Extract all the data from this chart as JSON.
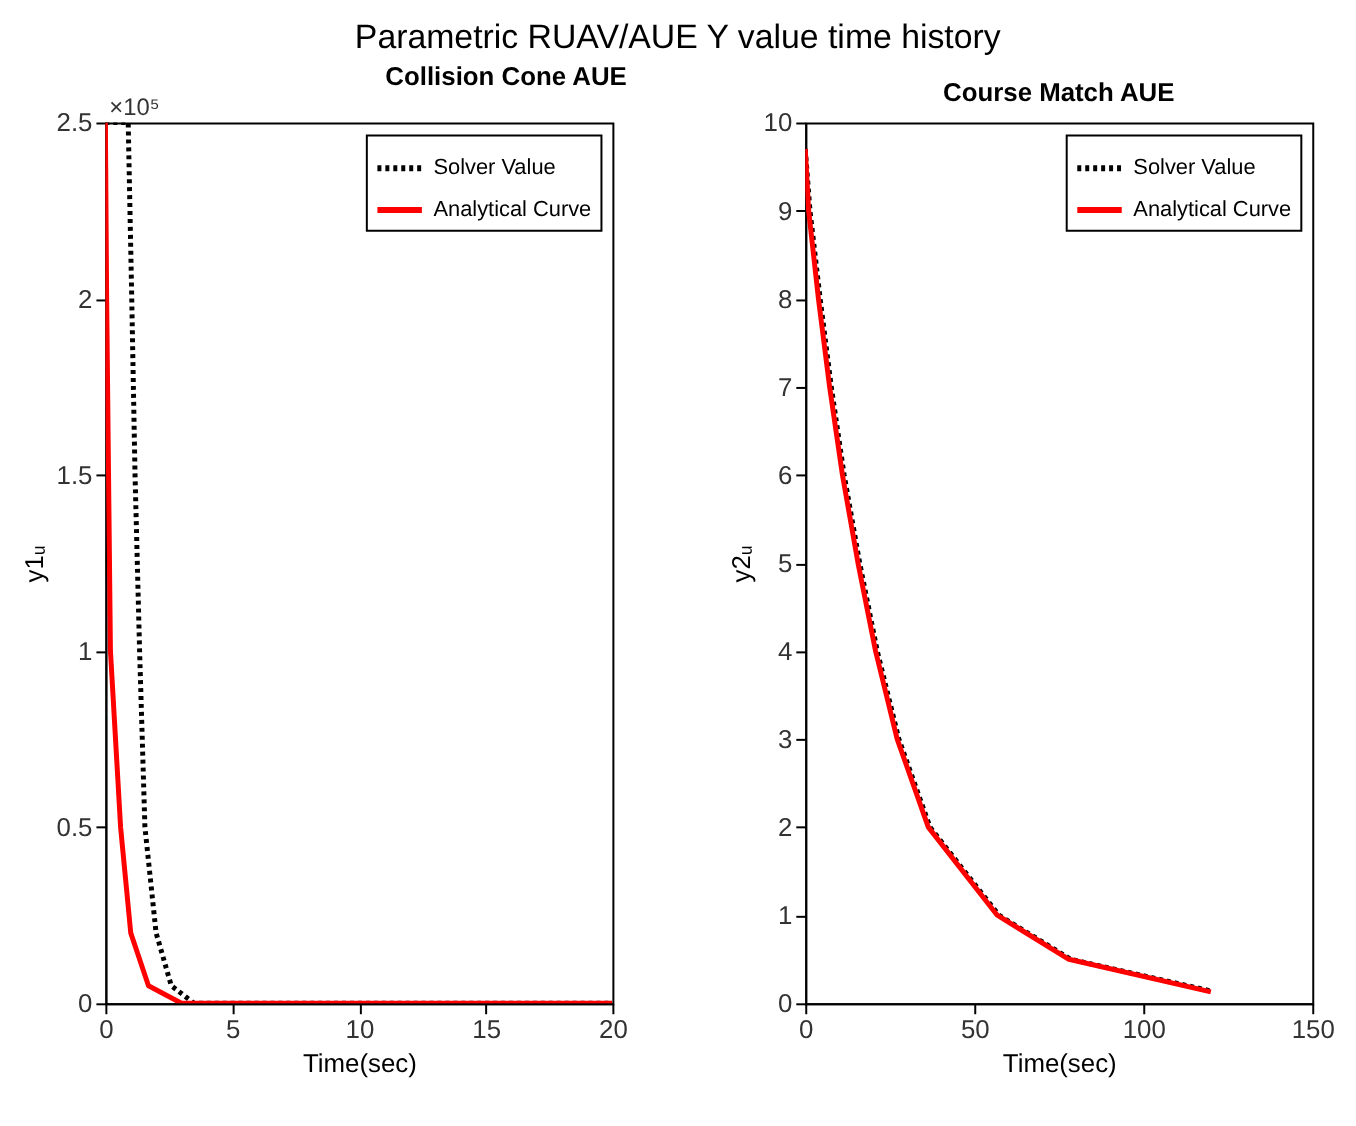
{
  "chart_data": [
    {
      "type": "line",
      "title": "Parametric RUAV/AUE Y value time history",
      "subtitle": "Collision Cone AUE",
      "xlabel": "Time(sec)",
      "ylabel": "y1ᵤ",
      "xlim": [
        0,
        20
      ],
      "xticks": [
        0,
        5,
        10,
        15,
        20
      ],
      "ylim": [
        0,
        2.5
      ],
      "yticks": [
        0,
        0.5,
        1,
        1.5,
        2,
        2.5
      ],
      "grid": false,
      "legend": "top right",
      "annotations": [
        "×10⁵"
      ],
      "series": [
        {
          "name": "Solver Value",
          "color": "#000000",
          "line_style": "dotted",
          "x": [
            0,
            0.9,
            1.04,
            1.17,
            1.35,
            1.56,
            2.0,
            2.6,
            3.5,
            5,
            20
          ],
          "values": [
            2.5,
            2.5,
            2.0,
            1.5,
            1.0,
            0.5,
            0.2,
            0.05,
            0,
            0,
            0
          ]
        },
        {
          "name": "Analytical Curve",
          "color": "#ff0000",
          "line_style": "solid",
          "x": [
            0,
            0.05,
            0.2,
            0.6,
            1.0,
            1.7,
            3.0,
            20
          ],
          "values": [
            2.5,
            2.0,
            1.0,
            0.5,
            0.2,
            0.05,
            0,
            0
          ]
        }
      ]
    },
    {
      "type": "line",
      "title": "Course Match AUE",
      "xlabel": "Time(sec)",
      "ylabel": "y2ᵤ",
      "xlim": [
        0,
        150
      ],
      "xticks": [
        0,
        50,
        100,
        150
      ],
      "ylim": [
        0,
        10
      ],
      "yticks": [
        0,
        1,
        2,
        3,
        4,
        5,
        6,
        7,
        8,
        9,
        10
      ],
      "grid": false,
      "legend": "top right",
      "series": [
        {
          "name": "Solver Value",
          "color": "#000000",
          "line_style": "dotted",
          "x": [
            0,
            1.4,
            4.4,
            7.7,
            11.5,
            16.1,
            21.3,
            27.7,
            36.9,
            57.3,
            78.5,
            120
          ],
          "values": [
            9.7,
            9,
            8,
            7,
            6,
            5,
            4,
            3,
            2,
            1,
            0.5,
            0.14
          ]
        },
        {
          "name": "Analytical Curve",
          "color": "#ff0000",
          "line_style": "solid",
          "x": [
            0,
            1,
            3.9,
            7.2,
            11,
            15.6,
            20.8,
            27.2,
            36.4,
            56.8,
            78,
            120
          ],
          "values": [
            9.7,
            9,
            8,
            7,
            6,
            5,
            4,
            3,
            2,
            1,
            0.5,
            0.13
          ]
        }
      ]
    }
  ]
}
